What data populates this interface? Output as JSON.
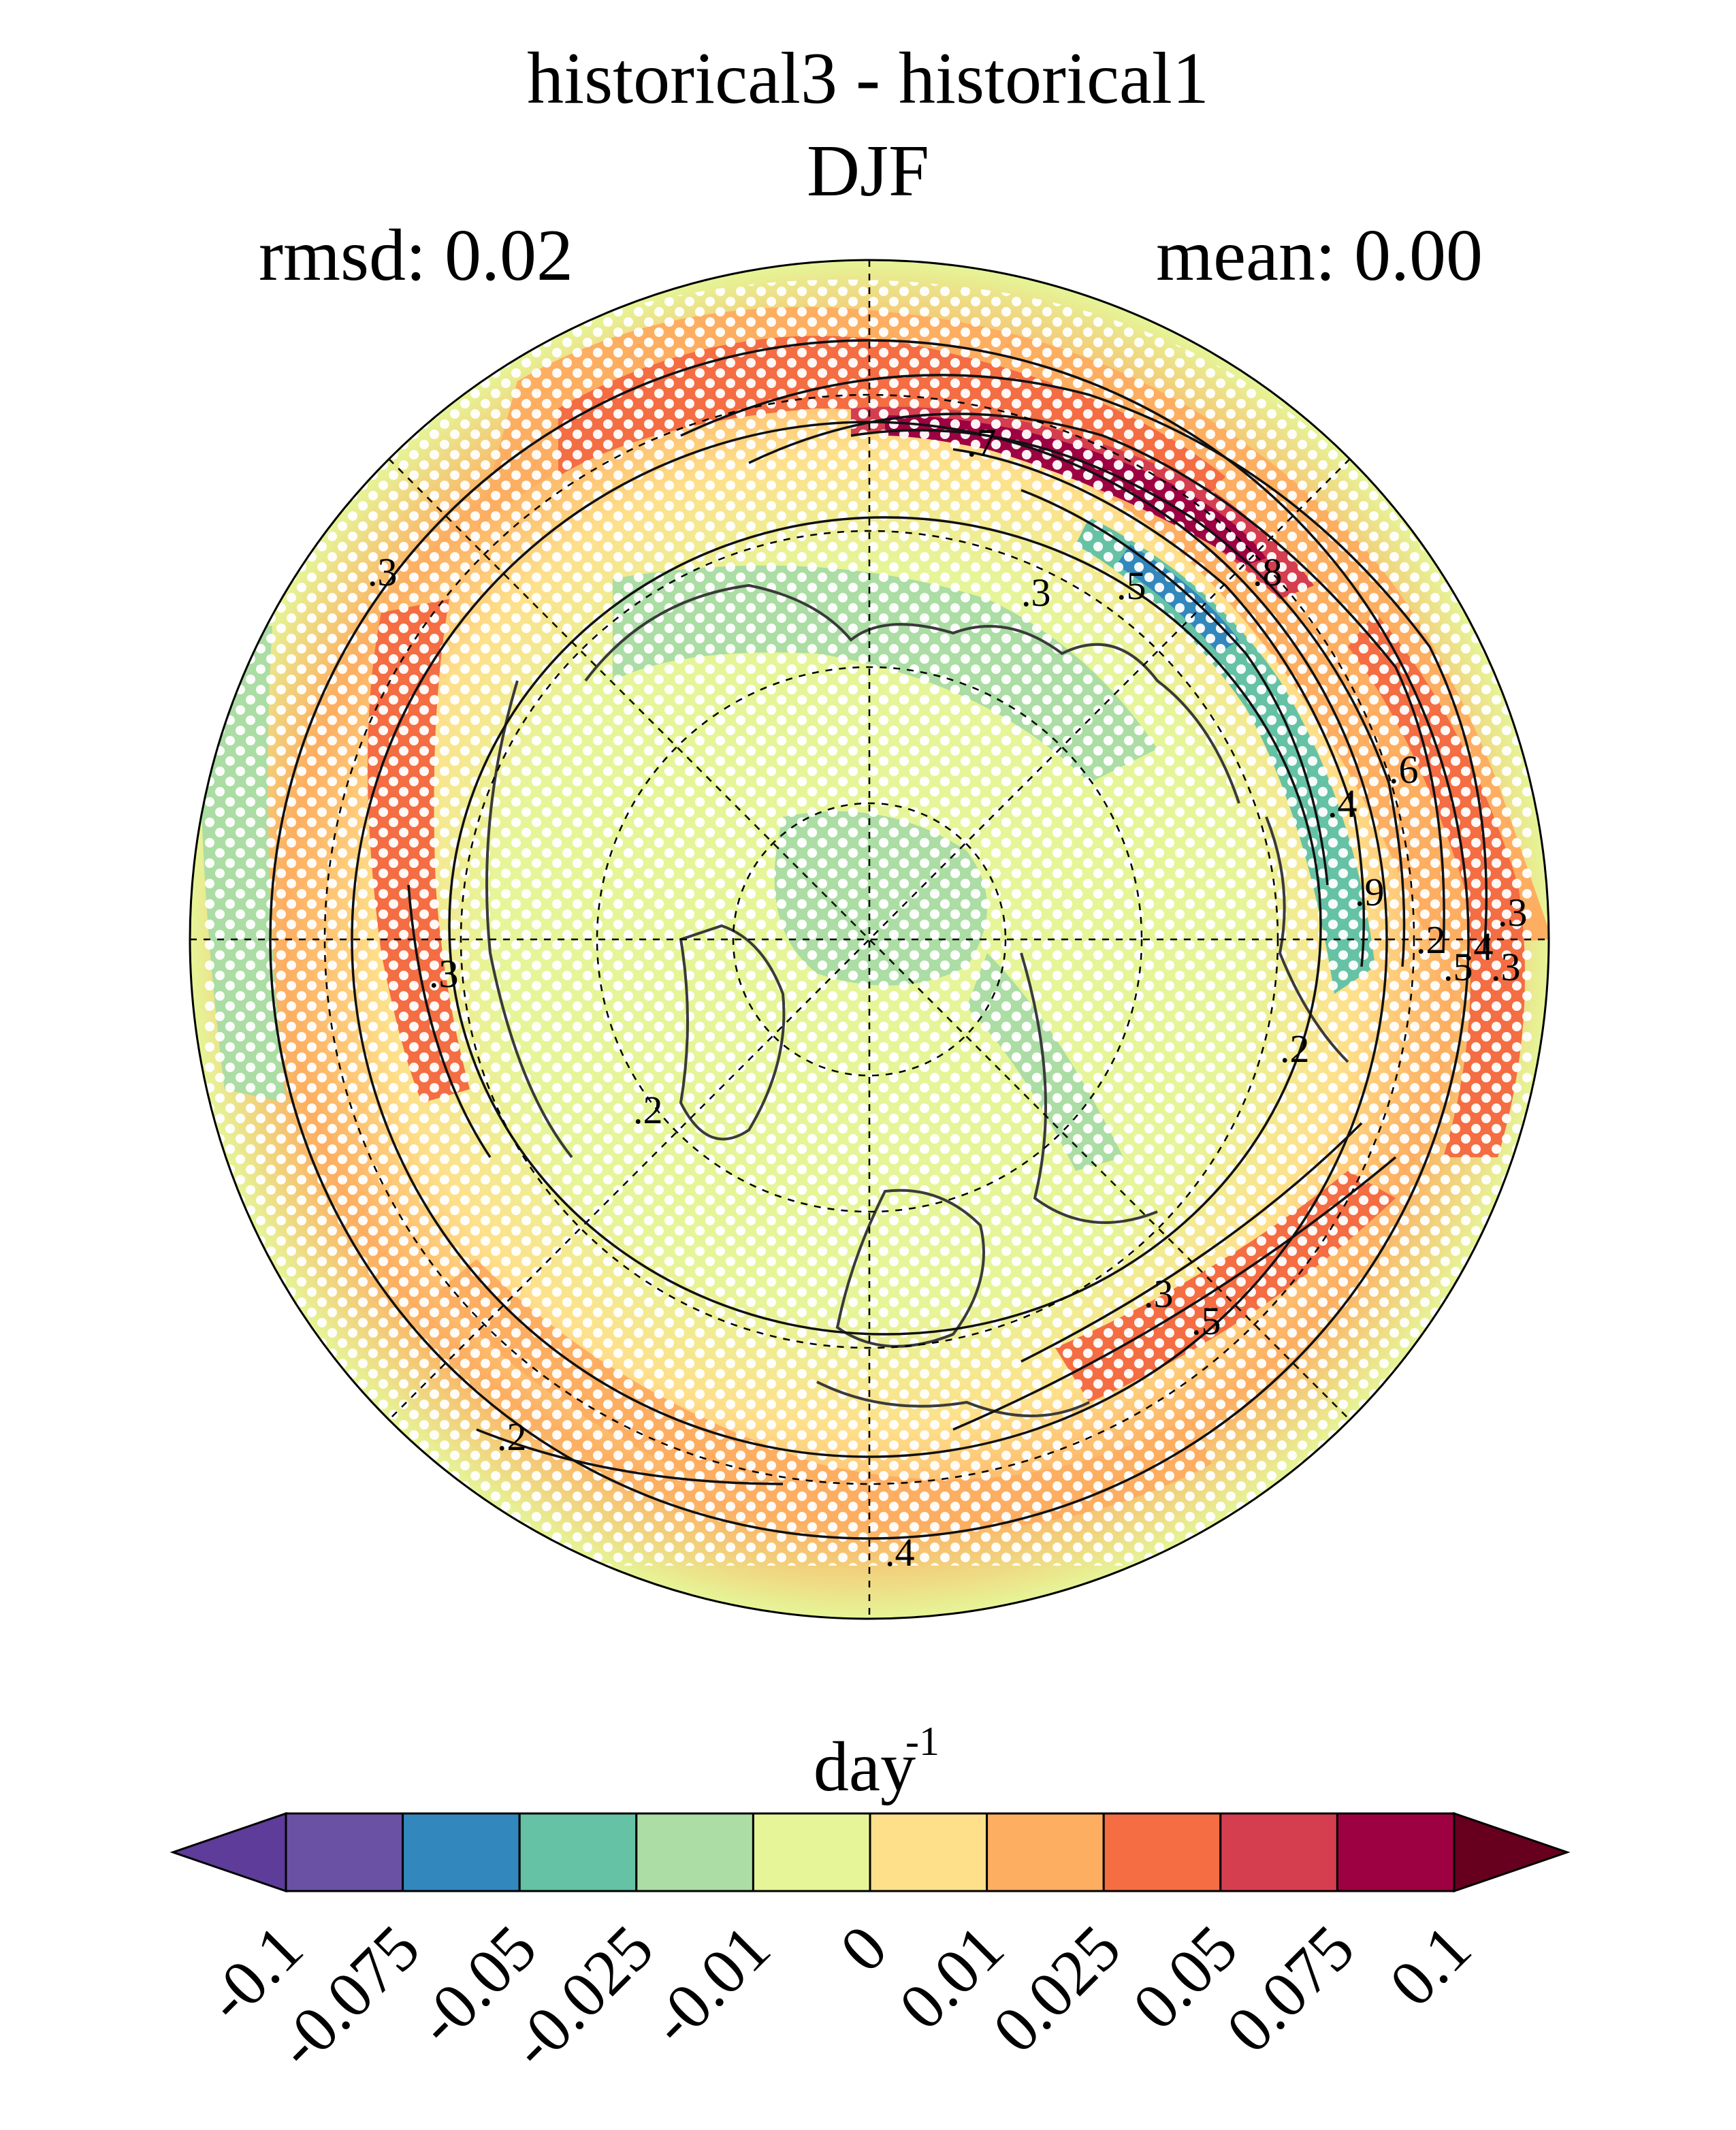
{
  "title": "historical3 - historical1",
  "subtitle": "DJF",
  "stats": {
    "rmsd": "rmsd: 0.02",
    "mean": "mean: 0.00"
  },
  "map": {
    "projection": "north-polar-stereographic",
    "stippling": "white dots over significant regions",
    "contour_labels": [
      ".7",
      ".3",
      ".5",
      ".8",
      ".6",
      ".4",
      ".9",
      ".2",
      ".3",
      ".3",
      ".2",
      ".2",
      ".3",
      ".5",
      ".2",
      ".4",
      ".3",
      ".4",
      ".5",
      ".3"
    ],
    "colors": {
      "coast": "#3a3a3a",
      "contour": "#111111",
      "grid": "#000000",
      "stipple": "#ffffff"
    }
  },
  "colorbar": {
    "unit": "day",
    "unit_exponent": "-1",
    "colors": [
      "#5e3c99",
      "#6a51a3",
      "#3288bd",
      "#66c2a5",
      "#abdda4",
      "#e6f598",
      "#fee08b",
      "#fdae61",
      "#f46d43",
      "#d53e4f",
      "#9e0142",
      "#67001f"
    ],
    "tick_labels": [
      "-0.1",
      "-0.075",
      "-0.05",
      "-0.025",
      "-0.01",
      "0",
      "0.01",
      "0.025",
      "0.05",
      "0.075",
      "0.1"
    ]
  }
}
